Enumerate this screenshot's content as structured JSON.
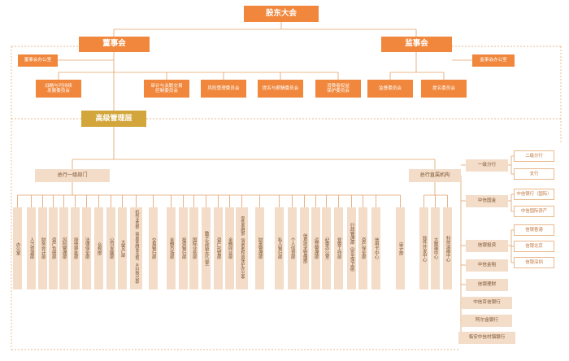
{
  "top": {
    "shareholders": "股东大会",
    "board": "董事会",
    "supervisors": "监事会",
    "board_office": "董事会办公室",
    "supervisor_office": "监事会办公室",
    "management": "高级管理层"
  },
  "board_committees": [
    "战略与可持续\n发展委员会",
    "审计与关联交易\n控制委员会",
    "风险管理委员会",
    "提名与薪酬委员会",
    "消费者权益\n保护委员会"
  ],
  "supervisor_committees": [
    "监督委员会",
    "提名委员会"
  ],
  "groups": {
    "level1_depts": "总行一级部门",
    "affiliated": "总行直属机构"
  },
  "departments": [
    "办公室",
    "人力资源部",
    "财务会计部",
    "资产负债部",
    "风险管理部",
    "授信审批部",
    "法律保全部",
    "合规部",
    "公司发展部",
    "大客户部",
    "机构业务部（普惠金融事业部、乡村振兴部）",
    "交易银行部",
    "金融市场部",
    "投资银行部",
    "国际业务部",
    "数字化转型办公室",
    "资产托管部",
    "金融同业部",
    "零售金融部（消费者权益保护办公室）",
    "财富管理部",
    "私人银行部",
    "个人信贷部",
    "信息技术管理部",
    "运营管理部",
    "纪委办公室",
    "党委工作部",
    "行政管理部（安全保卫部）",
    "资产保全部",
    "信用卡中心",
    "审计部"
  ],
  "affiliated_institutions": [
    "软件开发中心",
    "大数据中心",
    "科技运维中心"
  ],
  "branches": {
    "tier1": "一级分行",
    "tier2": "二级分行",
    "sub_branch": "支行"
  },
  "subsidiaries": [
    {
      "name": "中信国金",
      "children": [
        "中信银行（国际）",
        "中信国际资产"
      ]
    },
    {
      "name": "信银投资",
      "children": [
        "信银香港",
        "信银北京",
        "信银深圳"
      ]
    },
    {
      "name": "中信金租",
      "children": []
    },
    {
      "name": "信银理财",
      "children": []
    },
    {
      "name": "中信百信银行",
      "children": []
    },
    {
      "name": "阿尔金银行",
      "children": []
    },
    {
      "name": "临安中信村镇银行",
      "children": []
    }
  ],
  "colors": {
    "primary": "#f0873c",
    "gold": "#d2a63a",
    "light": "#f3ddc9",
    "line": "#e0a06a"
  }
}
